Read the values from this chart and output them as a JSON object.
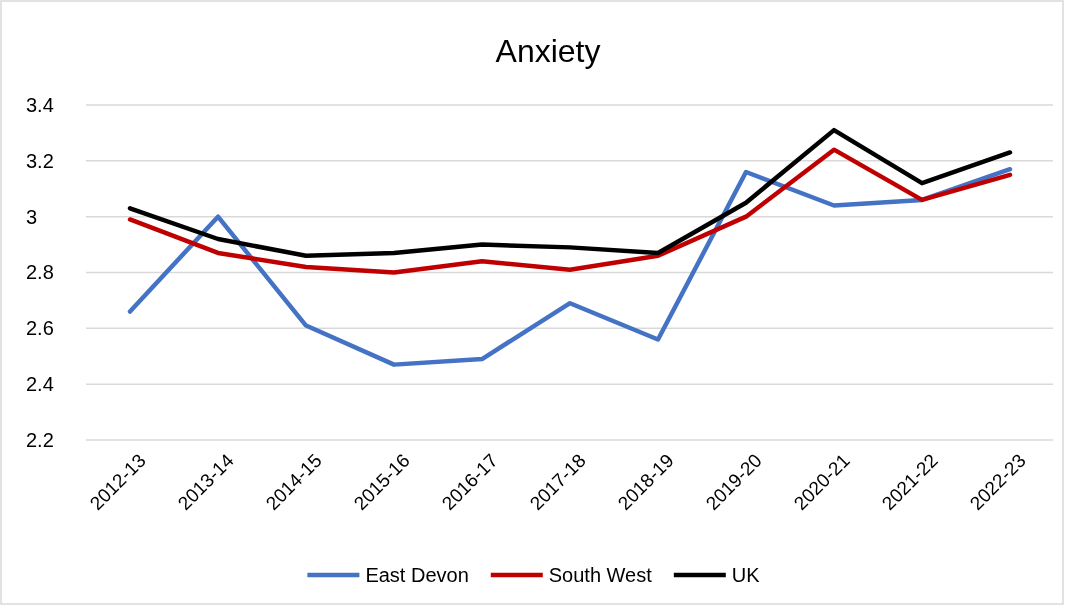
{
  "chart_data": {
    "type": "line",
    "title": "Anxiety",
    "categories": [
      "2012-13",
      "2013-14",
      "2014-15",
      "2015-16",
      "2016-17",
      "2017-18",
      "2018-19",
      "2019-20",
      "2020-21",
      "2021-22",
      "2022-23"
    ],
    "series": [
      {
        "name": "East Devon",
        "color": "#4472c4",
        "values": [
          2.66,
          3.0,
          2.61,
          2.47,
          2.49,
          2.69,
          2.56,
          3.16,
          3.04,
          3.06,
          3.17
        ]
      },
      {
        "name": "South West",
        "color": "#c00000",
        "values": [
          2.99,
          2.87,
          2.82,
          2.8,
          2.84,
          2.81,
          2.86,
          3.0,
          3.24,
          3.06,
          3.15
        ]
      },
      {
        "name": "UK",
        "color": "#000000",
        "values": [
          3.03,
          2.92,
          2.86,
          2.87,
          2.9,
          2.89,
          2.87,
          3.05,
          3.31,
          3.12,
          3.23
        ]
      }
    ],
    "ylim": [
      2.2,
      3.4
    ],
    "yticks": [
      2.2,
      2.4,
      2.6,
      2.8,
      3,
      3.2,
      3.4
    ],
    "grid": "y",
    "legend": "bottom",
    "marker": "none",
    "line_style": "solid"
  }
}
